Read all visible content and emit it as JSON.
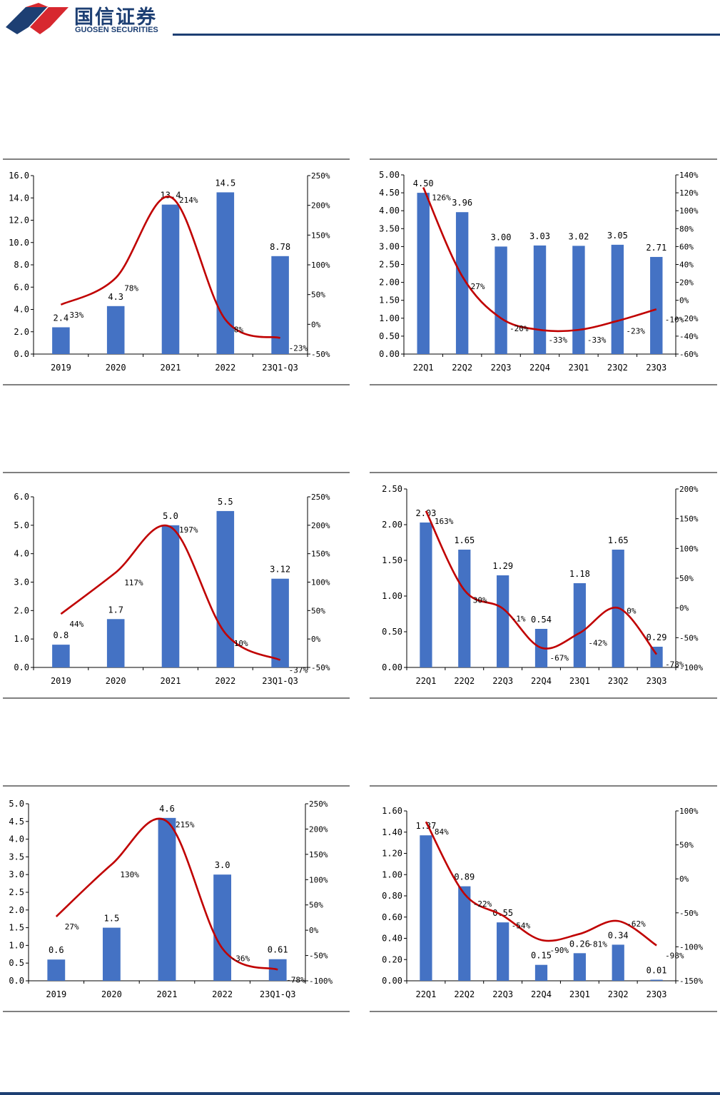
{
  "header": {
    "logo_cn": "国信证券",
    "logo_en": "GUOSEN SECURITIES",
    "brand_color": "#1d3f73",
    "logo_red": "#d7282f"
  },
  "colors": {
    "bar": "#4472c4",
    "line": "#c00000"
  },
  "chart_data": [
    {
      "type": "bar",
      "categories": [
        "2019",
        "2020",
        "2021",
        "2022",
        "23Q1-Q3"
      ],
      "values": [
        2.4,
        4.3,
        13.4,
        14.5,
        8.78
      ],
      "value_labels": [
        "2.4",
        "4.3",
        "13.4",
        "14.5",
        "8.78"
      ],
      "line": [
        33,
        78,
        214,
        8,
        -23
      ],
      "line_labels": [
        "33%",
        "78%",
        "214%",
        "8%",
        "-23%"
      ],
      "ylim": [
        0,
        16
      ],
      "y_ticks": [
        "0.0",
        "2.0",
        "4.0",
        "6.0",
        "8.0",
        "10.0",
        "12.0",
        "14.0",
        "16.0"
      ],
      "y2lim": [
        -50,
        250
      ],
      "y2_ticks": [
        "-50%",
        "0%",
        "50%",
        "100%",
        "150%",
        "200%",
        "250%"
      ]
    },
    {
      "type": "bar",
      "categories": [
        "22Q1",
        "22Q2",
        "22Q3",
        "22Q4",
        "23Q1",
        "23Q2",
        "23Q3"
      ],
      "values": [
        4.5,
        3.96,
        3.0,
        3.03,
        3.02,
        3.05,
        2.71
      ],
      "value_labels": [
        "4.50",
        "3.96",
        "3.00",
        "3.03",
        "3.02",
        "3.05",
        "2.71"
      ],
      "line": [
        126,
        27,
        -20,
        -33,
        -33,
        -23,
        -10
      ],
      "line_labels": [
        "126%",
        "27%",
        "-20%",
        "-33%",
        "-33%",
        "-23%",
        "-10%"
      ],
      "ylim": [
        0,
        5
      ],
      "y_ticks": [
        "0.00",
        "0.50",
        "1.00",
        "1.50",
        "2.00",
        "2.50",
        "3.00",
        "3.50",
        "4.00",
        "4.50",
        "5.00"
      ],
      "y2lim": [
        -60,
        140
      ],
      "y2_ticks": [
        "-60%",
        "-40%",
        "-20%",
        "0%",
        "20%",
        "40%",
        "60%",
        "80%",
        "100%",
        "120%",
        "140%"
      ]
    },
    {
      "type": "bar",
      "categories": [
        "2019",
        "2020",
        "2021",
        "2022",
        "23Q1-Q3"
      ],
      "values": [
        0.8,
        1.7,
        5.0,
        5.5,
        3.12
      ],
      "value_labels": [
        "0.8",
        "1.7",
        "5.0",
        "5.5",
        "3.12"
      ],
      "line": [
        44,
        117,
        197,
        10,
        -37
      ],
      "line_labels": [
        "44%",
        "117%",
        "197%",
        "10%",
        "-37%"
      ],
      "ylim": [
        0,
        6
      ],
      "y_ticks": [
        "0.0",
        "1.0",
        "2.0",
        "3.0",
        "4.0",
        "5.0",
        "6.0"
      ],
      "y2lim": [
        -50,
        250
      ],
      "y2_ticks": [
        "-50%",
        "0%",
        "50%",
        "100%",
        "150%",
        "200%",
        "250%"
      ]
    },
    {
      "type": "bar",
      "categories": [
        "22Q1",
        "22Q2",
        "22Q3",
        "22Q4",
        "23Q1",
        "23Q2",
        "23Q3"
      ],
      "values": [
        2.03,
        1.65,
        1.29,
        0.54,
        1.18,
        1.65,
        0.29
      ],
      "value_labels": [
        "2.03",
        "1.65",
        "1.29",
        "0.54",
        "1.18",
        "1.65",
        "0.29"
      ],
      "line": [
        163,
        30,
        -1,
        -67,
        -42,
        0,
        -78
      ],
      "line_labels": [
        "163%",
        "30%",
        "-1%",
        "-67%",
        "-42%",
        "0%",
        "-78%"
      ],
      "ylim": [
        0,
        2.5
      ],
      "y_ticks": [
        "0.00",
        "0.50",
        "1.00",
        "1.50",
        "2.00",
        "2.50"
      ],
      "y2lim": [
        -100,
        200
      ],
      "y2_ticks": [
        "-100%",
        "-50%",
        "0%",
        "50%",
        "100%",
        "150%",
        "200%"
      ]
    },
    {
      "type": "bar",
      "categories": [
        "2019",
        "2020",
        "2021",
        "2022",
        "23Q1-Q3"
      ],
      "values": [
        0.6,
        1.5,
        4.6,
        3.0,
        0.61
      ],
      "value_labels": [
        "0.6",
        "1.5",
        "4.6",
        "3.0",
        "0.61"
      ],
      "line": [
        27,
        130,
        215,
        -36,
        -78
      ],
      "line_labels": [
        "27%",
        "130%",
        "215%",
        "-36%",
        "-78%"
      ],
      "ylim": [
        0,
        5
      ],
      "y_ticks": [
        "0.0",
        "0.5",
        "1.0",
        "1.5",
        "2.0",
        "2.5",
        "3.0",
        "3.5",
        "4.0",
        "4.5",
        "5.0"
      ],
      "y2lim": [
        -100,
        250
      ],
      "y2_ticks": [
        "-100%",
        "-50%",
        "0%",
        "50%",
        "100%",
        "150%",
        "200%",
        "250%"
      ]
    },
    {
      "type": "bar",
      "categories": [
        "22Q1",
        "22Q2",
        "22Q3",
        "22Q4",
        "23Q1",
        "23Q2",
        "23Q3"
      ],
      "values": [
        1.37,
        0.89,
        0.55,
        0.15,
        0.26,
        0.34,
        0.01
      ],
      "value_labels": [
        "1.37",
        "0.89",
        "0.55",
        "0.15",
        "0.26",
        "0.34",
        "0.01"
      ],
      "line": [
        84,
        -22,
        -54,
        -90,
        -81,
        -62,
        -98
      ],
      "line_labels": [
        "84%",
        "-22%",
        "-54%",
        "-90%",
        "-81%",
        "-62%",
        "-98%"
      ],
      "ylim": [
        0,
        1.6
      ],
      "y_ticks": [
        "0.00",
        "0.20",
        "0.40",
        "0.60",
        "0.80",
        "1.00",
        "1.20",
        "1.40",
        "1.60"
      ],
      "y2lim": [
        -150,
        100
      ],
      "y2_ticks": [
        "-150%",
        "-100%",
        "-50%",
        "0%",
        "50%",
        "100%"
      ]
    }
  ]
}
